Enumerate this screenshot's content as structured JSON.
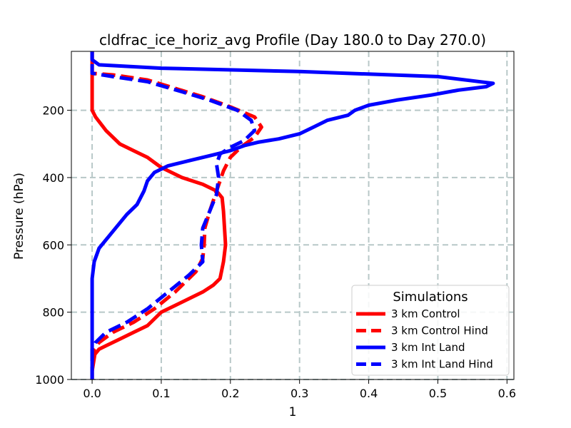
{
  "chart_data": {
    "type": "line",
    "title": "cldfrac_ice_horiz_avg Profile (Day 180.0 to Day 270.0)",
    "xlabel": "1",
    "ylabel": "Pressure (hPa)",
    "xlim": [
      -0.03,
      0.61
    ],
    "ylim": [
      1000,
      25
    ],
    "y_inverted": true,
    "grid": true,
    "x_ticks": [
      0.0,
      0.1,
      0.2,
      0.3,
      0.4,
      0.5,
      0.6
    ],
    "x_tick_labels": [
      "0.0",
      "0.1",
      "0.2",
      "0.3",
      "0.4",
      "0.5",
      "0.6"
    ],
    "y_ticks": [
      200,
      400,
      600,
      800,
      1000
    ],
    "y_tick_labels": [
      "200",
      "400",
      "600",
      "800",
      "1000"
    ],
    "legend": {
      "title": "Simulations",
      "position": "lower-right"
    },
    "series": [
      {
        "name": "3 km Control",
        "color": "#ff0000",
        "dashed": false,
        "points": [
          [
            0.0,
            1000
          ],
          [
            0.0,
            975
          ],
          [
            0.002,
            950
          ],
          [
            0.004,
            925
          ],
          [
            0.01,
            910
          ],
          [
            0.02,
            900
          ],
          [
            0.04,
            880
          ],
          [
            0.06,
            860
          ],
          [
            0.08,
            840
          ],
          [
            0.1,
            800
          ],
          [
            0.12,
            780
          ],
          [
            0.14,
            760
          ],
          [
            0.16,
            740
          ],
          [
            0.175,
            720
          ],
          [
            0.185,
            700
          ],
          [
            0.19,
            650
          ],
          [
            0.193,
            600
          ],
          [
            0.19,
            500
          ],
          [
            0.188,
            460
          ],
          [
            0.18,
            440
          ],
          [
            0.16,
            420
          ],
          [
            0.13,
            400
          ],
          [
            0.1,
            370
          ],
          [
            0.08,
            340
          ],
          [
            0.06,
            320
          ],
          [
            0.04,
            300
          ],
          [
            0.02,
            260
          ],
          [
            0.005,
            220
          ],
          [
            0.0,
            200
          ],
          [
            0.0,
            100
          ],
          [
            0.0,
            25
          ]
        ]
      },
      {
        "name": "3 km Control Hind",
        "color": "#ff0000",
        "dashed": true,
        "points": [
          [
            0.0,
            1000
          ],
          [
            0.0,
            930
          ],
          [
            0.003,
            910
          ],
          [
            0.01,
            890
          ],
          [
            0.03,
            860
          ],
          [
            0.06,
            830
          ],
          [
            0.09,
            790
          ],
          [
            0.12,
            740
          ],
          [
            0.15,
            680
          ],
          [
            0.16,
            640
          ],
          [
            0.162,
            600
          ],
          [
            0.163,
            550
          ],
          [
            0.17,
            500
          ],
          [
            0.18,
            440
          ],
          [
            0.19,
            380
          ],
          [
            0.2,
            340
          ],
          [
            0.215,
            310
          ],
          [
            0.235,
            280
          ],
          [
            0.245,
            250
          ],
          [
            0.235,
            220
          ],
          [
            0.2,
            190
          ],
          [
            0.16,
            160
          ],
          [
            0.12,
            135
          ],
          [
            0.08,
            110
          ],
          [
            0.03,
            95
          ],
          [
            0.0,
            90
          ],
          [
            0.0,
            25
          ]
        ]
      },
      {
        "name": "3 km Int Land",
        "color": "#0000ff",
        "dashed": false,
        "points": [
          [
            0.0,
            1000
          ],
          [
            0.0,
            900
          ],
          [
            0.0,
            800
          ],
          [
            0.0,
            700
          ],
          [
            0.003,
            650
          ],
          [
            0.01,
            610
          ],
          [
            0.03,
            560
          ],
          [
            0.05,
            510
          ],
          [
            0.065,
            480
          ],
          [
            0.075,
            440
          ],
          [
            0.08,
            410
          ],
          [
            0.09,
            385
          ],
          [
            0.11,
            365
          ],
          [
            0.14,
            350
          ],
          [
            0.17,
            335
          ],
          [
            0.2,
            320
          ],
          [
            0.22,
            305
          ],
          [
            0.24,
            295
          ],
          [
            0.27,
            285
          ],
          [
            0.3,
            270
          ],
          [
            0.32,
            250
          ],
          [
            0.34,
            230
          ],
          [
            0.37,
            215
          ],
          [
            0.38,
            200
          ],
          [
            0.4,
            185
          ],
          [
            0.44,
            170
          ],
          [
            0.49,
            155
          ],
          [
            0.53,
            140
          ],
          [
            0.57,
            130
          ],
          [
            0.58,
            120
          ],
          [
            0.5,
            100
          ],
          [
            0.3,
            85
          ],
          [
            0.1,
            75
          ],
          [
            0.01,
            65
          ],
          [
            0.0,
            50
          ],
          [
            0.0,
            25
          ]
        ]
      },
      {
        "name": "3 km Int Land Hind",
        "color": "#0000ff",
        "dashed": true,
        "points": [
          [
            0.0,
            1000
          ],
          [
            0.0,
            950
          ],
          [
            0.0,
            910
          ],
          [
            0.005,
            890
          ],
          [
            0.02,
            860
          ],
          [
            0.05,
            830
          ],
          [
            0.08,
            790
          ],
          [
            0.11,
            740
          ],
          [
            0.14,
            690
          ],
          [
            0.16,
            650
          ],
          [
            0.158,
            600
          ],
          [
            0.16,
            550
          ],
          [
            0.17,
            500
          ],
          [
            0.18,
            450
          ],
          [
            0.183,
            400
          ],
          [
            0.18,
            360
          ],
          [
            0.185,
            330
          ],
          [
            0.2,
            310
          ],
          [
            0.22,
            290
          ],
          [
            0.235,
            260
          ],
          [
            0.23,
            230
          ],
          [
            0.21,
            200
          ],
          [
            0.17,
            170
          ],
          [
            0.13,
            145
          ],
          [
            0.08,
            115
          ],
          [
            0.03,
            100
          ],
          [
            0.0,
            90
          ],
          [
            0.0,
            25
          ]
        ]
      }
    ]
  }
}
